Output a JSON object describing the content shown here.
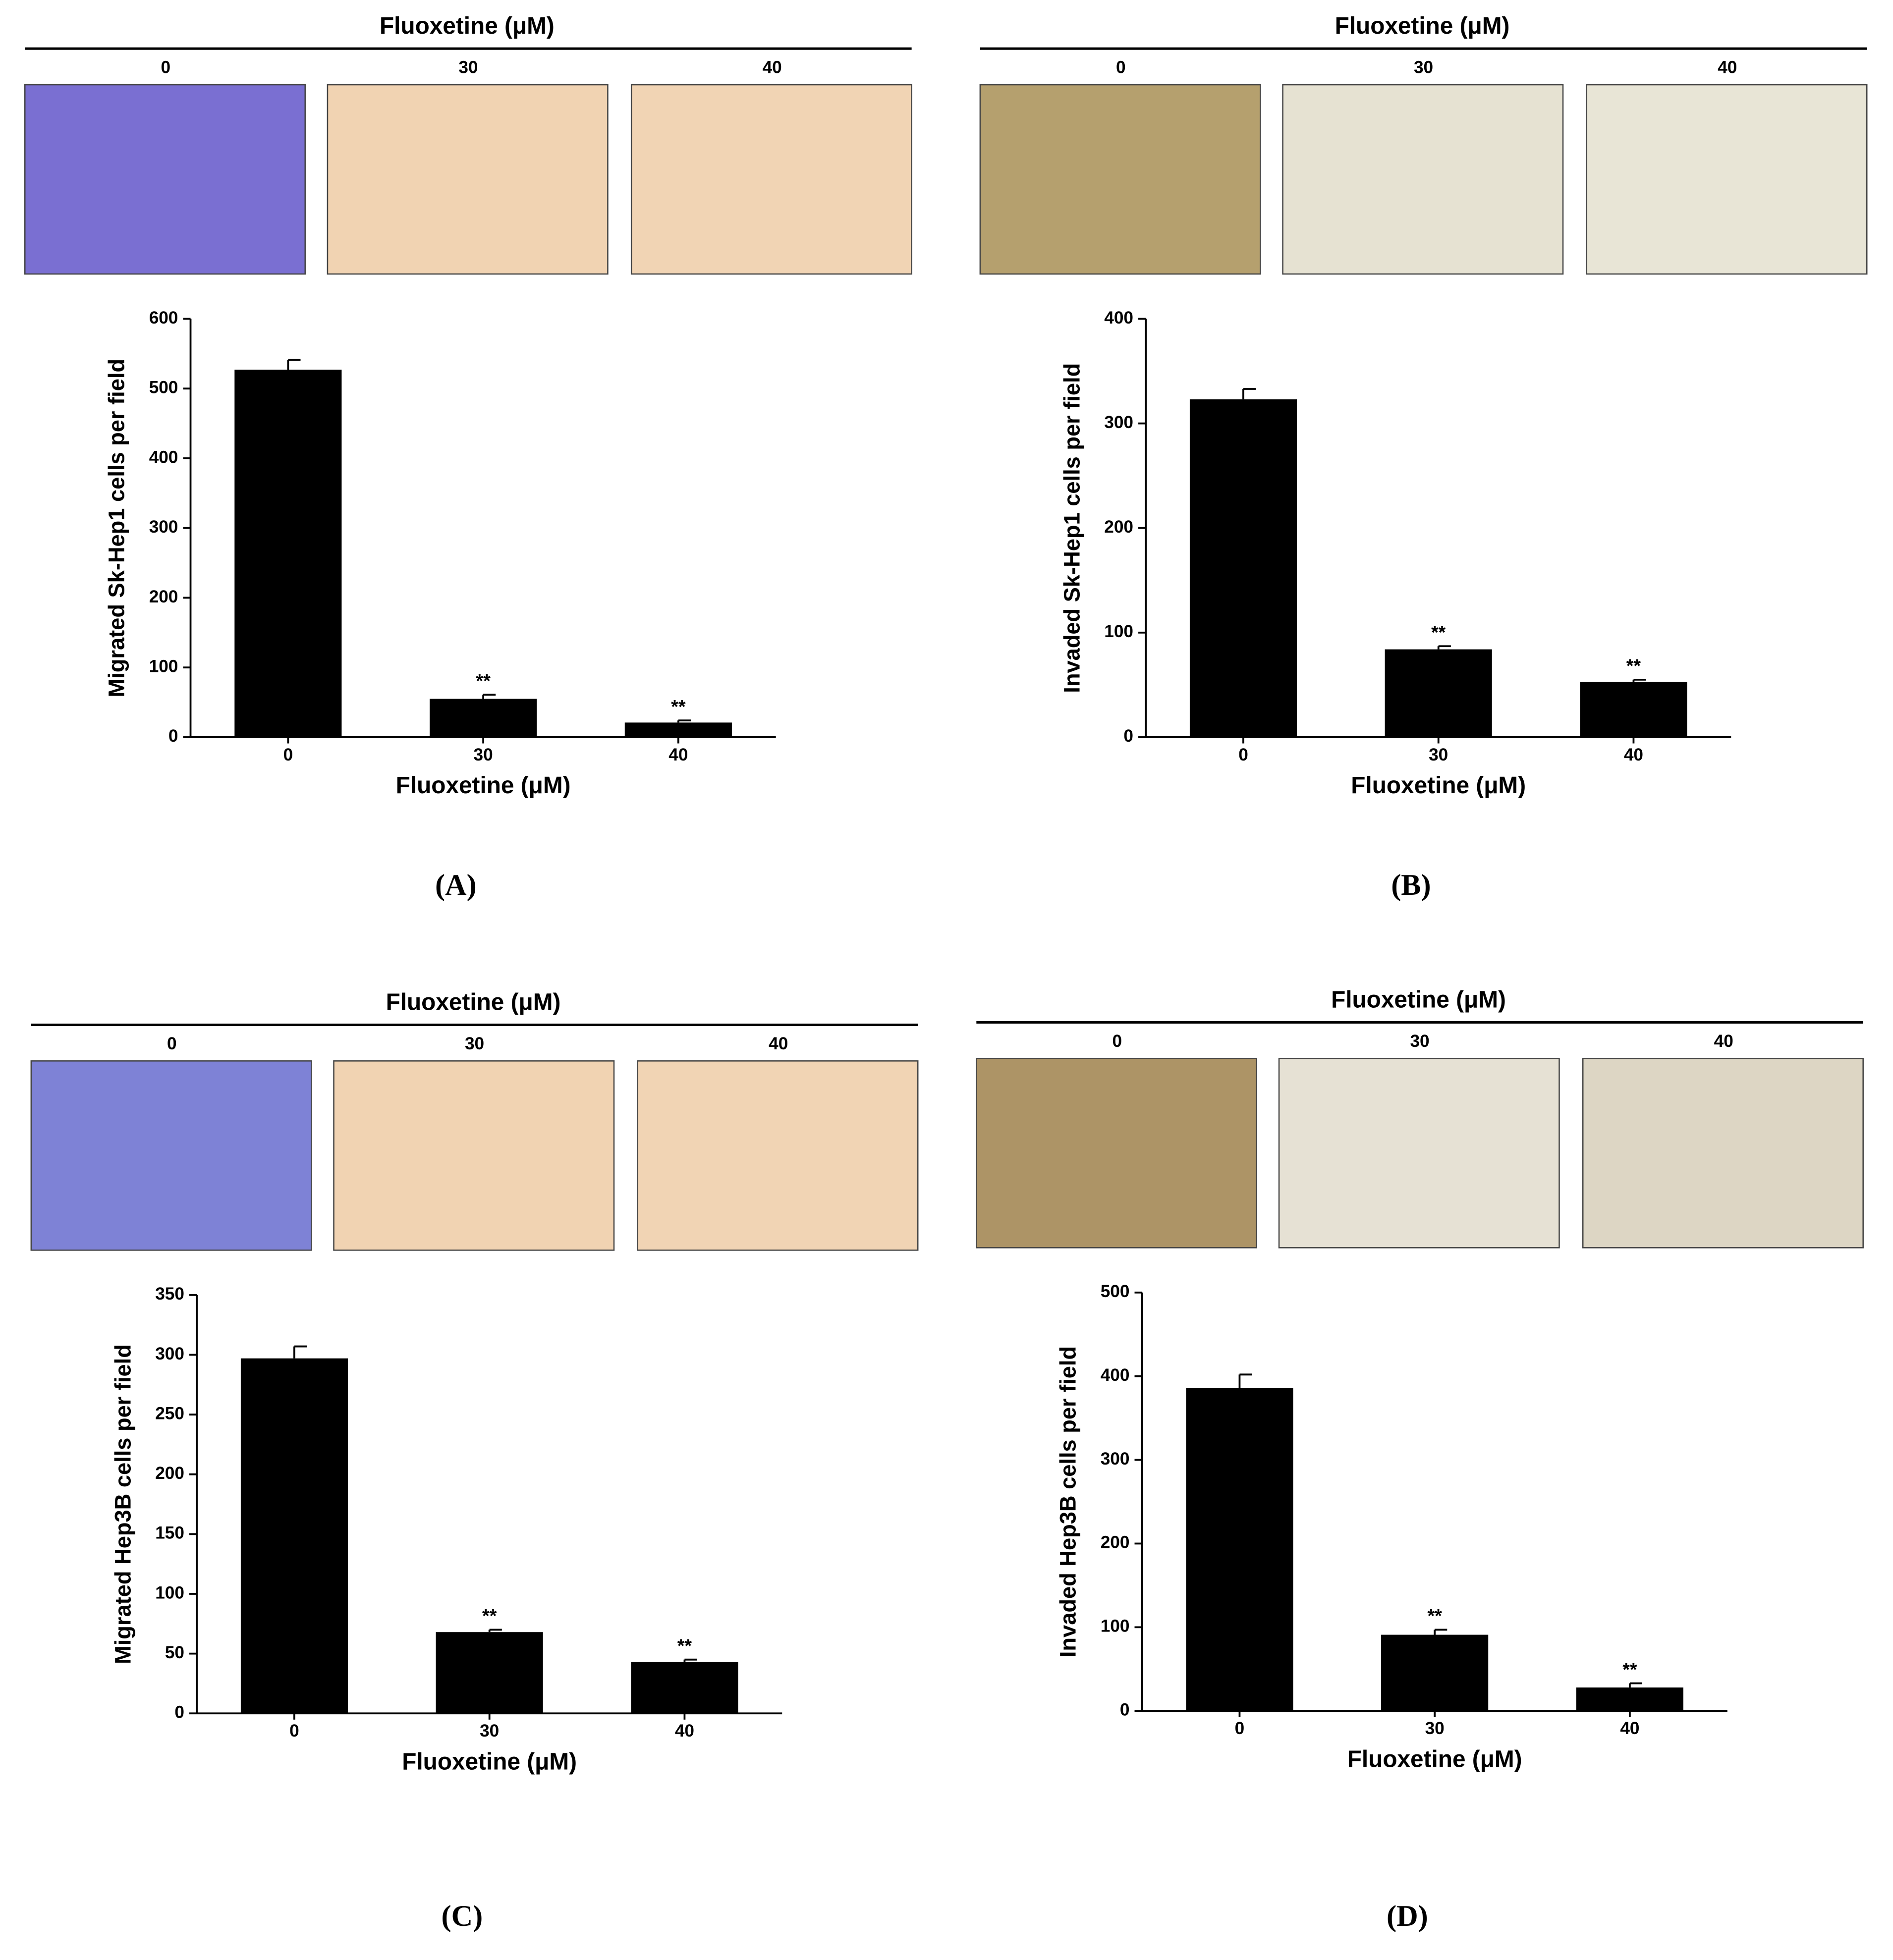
{
  "chart_data": [
    {
      "type": "bar",
      "header": "Fluoxetine (μM)",
      "image_labels": [
        "0",
        "30",
        "40"
      ],
      "image_colors": [
        "#7a6fd2",
        "#f1d3b2",
        "#f1d4b4"
      ],
      "ylabel": "Migrated Sk-Hep1 cells per field",
      "xlabel": "Fluoxetine (μM)",
      "panel_label": "(A)",
      "categories": [
        "0",
        "30",
        "40"
      ],
      "values": [
        527,
        55,
        21
      ],
      "errors": [
        14,
        6,
        3
      ],
      "annotations": [
        null,
        "**",
        "**"
      ],
      "color": "#000000",
      "ylim": [
        0,
        600
      ],
      "yticks": [
        0,
        100,
        200,
        300,
        400,
        500,
        600
      ]
    },
    {
      "type": "bar",
      "header": "Fluoxetine (μM)",
      "image_labels": [
        "0",
        "30",
        "40"
      ],
      "image_colors": [
        "#b5a06e",
        "#e6e2d2",
        "#e8e5d6"
      ],
      "ylabel": "Invaded Sk-Hep1 cells per field",
      "xlabel": "Fluoxetine (μM)",
      "panel_label": "(B)",
      "categories": [
        "0",
        "30",
        "40"
      ],
      "values": [
        323,
        84,
        53
      ],
      "errors": [
        10,
        3,
        2
      ],
      "annotations": [
        null,
        "**",
        "**"
      ],
      "color": "#000000",
      "ylim": [
        0,
        400
      ],
      "yticks": [
        0,
        100,
        200,
        300,
        400
      ]
    },
    {
      "type": "bar",
      "header": "Fluoxetine (μM)",
      "image_labels": [
        "0",
        "30",
        "40"
      ],
      "image_colors": [
        "#7e82d6",
        "#f1d3b2",
        "#f1d4b4"
      ],
      "ylabel": "Migrated Hep3B cells per field",
      "xlabel": "Fluoxetine (μM)",
      "panel_label": "(C)",
      "categories": [
        "0",
        "30",
        "40"
      ],
      "values": [
        297,
        68,
        43
      ],
      "errors": [
        10,
        2,
        2
      ],
      "annotations": [
        null,
        "**",
        "**"
      ],
      "color": "#000000",
      "ylim": [
        0,
        350
      ],
      "yticks": [
        0,
        50,
        100,
        150,
        200,
        250,
        300,
        350
      ]
    },
    {
      "type": "bar",
      "header": "Fluoxetine (μM)",
      "image_labels": [
        "0",
        "30",
        "40"
      ],
      "image_colors": [
        "#ad9466",
        "#e6e1d4",
        "#ddd6c4"
      ],
      "ylabel": "Invaded Hep3B cells per field",
      "xlabel": "Fluoxetine (μM)",
      "panel_label": "(D)",
      "categories": [
        "0",
        "30",
        "40"
      ],
      "values": [
        386,
        91,
        28
      ],
      "errors": [
        16,
        6,
        5
      ],
      "annotations": [
        null,
        "**",
        "**"
      ],
      "color": "#000000",
      "ylim": [
        0,
        500
      ],
      "yticks": [
        0,
        100,
        200,
        300,
        400,
        500
      ]
    }
  ]
}
